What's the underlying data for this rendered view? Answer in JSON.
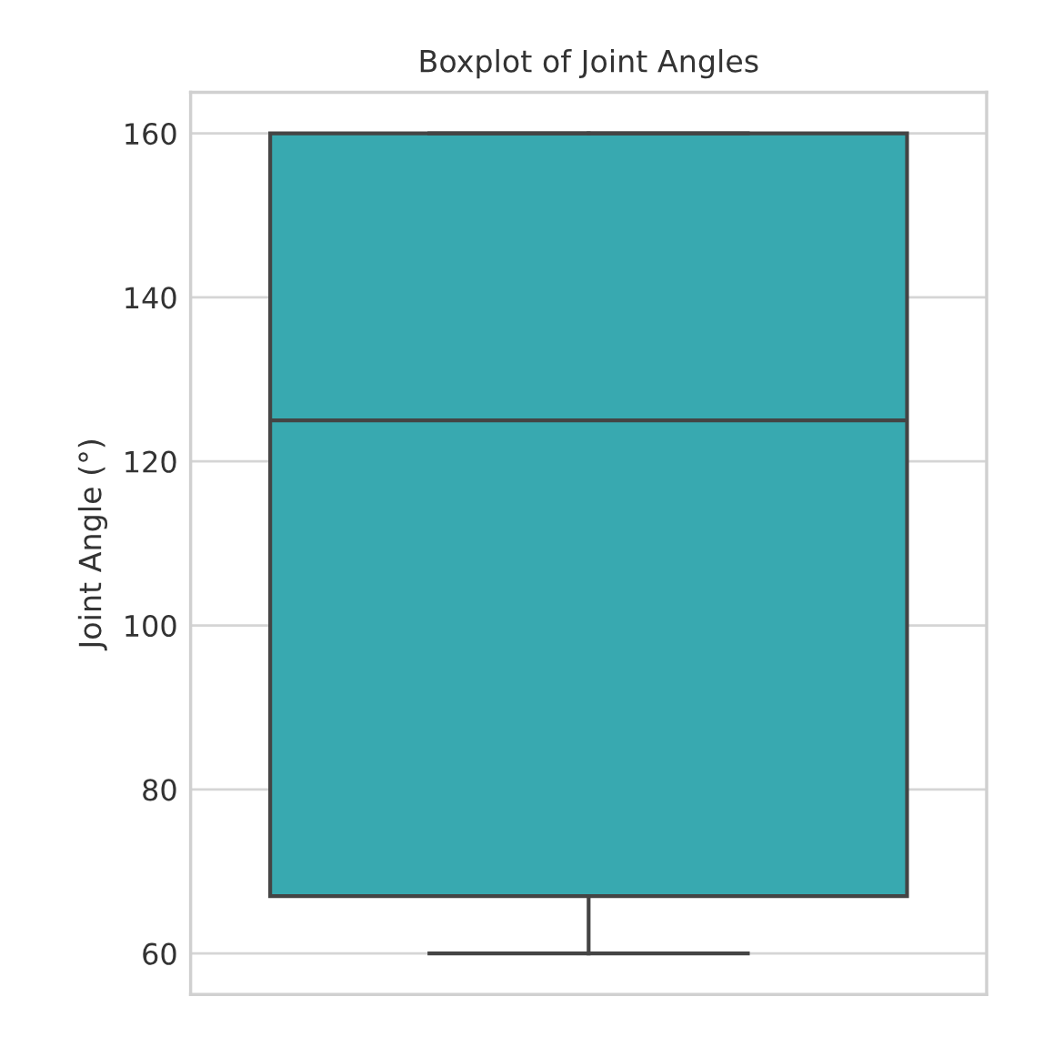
{
  "chart_data": {
    "type": "box",
    "title": "Boxplot of Joint Angles",
    "ylabel": "Joint Angle (°)",
    "categories": [
      null
    ],
    "boxes": [
      {
        "low": 60,
        "q1": 67,
        "median": 125,
        "q3": 160,
        "high": 160
      }
    ],
    "color": "#38a9b0",
    "ylim": [
      55,
      165
    ],
    "yticks": [
      60,
      80,
      100,
      120,
      140,
      160
    ],
    "grid": "y"
  }
}
